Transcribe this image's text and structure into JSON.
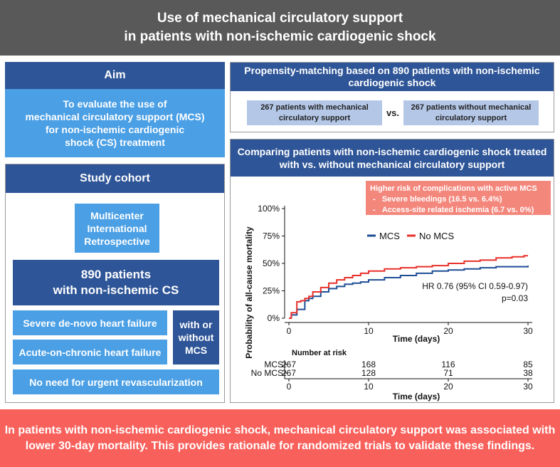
{
  "title": {
    "line1": "Use of mechanical circulatory support",
    "line2": "in patients with non-ischemic cardiogenic shock"
  },
  "aim": {
    "heading": "Aim",
    "lines": [
      "To evaluate the use of",
      "mechanical circulatory support (MCS)",
      "for non-ischemic cardiogenic",
      "shock (CS) treatment"
    ]
  },
  "cohort": {
    "heading": "Study cohort",
    "design_lines": [
      "Multicenter",
      "International",
      "Retrospective"
    ],
    "patients_line1": "890 patients",
    "patients_line2": "with non-ischemic CS",
    "criteria": [
      "Severe de-novo heart failure",
      "Acute-on-chronic heart failure"
    ],
    "with_or_without": [
      "with or",
      "without",
      "MCS"
    ],
    "no_revasc": "No need for urgent revascularization"
  },
  "propensity": {
    "heading_line1": "Propensity-matching based on 890 patients with non-ischemic",
    "heading_line2": "cardiogenic shock",
    "group_mcs": [
      "267 patients with mechanical",
      "circulatory support"
    ],
    "vs_label": "vs.",
    "group_no_mcs": [
      "267 patients without mechanical",
      "circulatory support"
    ]
  },
  "comparison": {
    "heading_line1": "Comparing patients with non-ischemic cardiogenic shock treated",
    "heading_line2": "with vs. without mechanical circulatory support",
    "complications_title": "Higher risk of complications with active MCS",
    "complications": [
      "Severe bleedings (16.5 vs. 6.4%)",
      "Access-site related ischemia (6.7 vs. 0%)"
    ],
    "bullet": "-"
  },
  "conclusion": {
    "line1": "In patients with non-ischemic cardiogenic shock, mechanical circulatory support was associated with",
    "line2": "lower 30-day mortality. This provides rationale for randomized trials to validate these findings."
  },
  "colors": {
    "mcs": "#1f4e96",
    "no_mcs": "#e8302a"
  },
  "chart_data": {
    "type": "line",
    "title": "",
    "xlabel": "Time (days)",
    "ylabel": "Probability of all-cause mortality",
    "xlim": [
      0,
      30
    ],
    "ylim": [
      0,
      100
    ],
    "x_ticks": [
      0,
      10,
      20,
      30
    ],
    "y_ticks": [
      "0%",
      "25%",
      "50%",
      "75%",
      "100%"
    ],
    "y_tick_values": [
      0,
      25,
      50,
      75,
      100
    ],
    "grid": false,
    "legend_position": "top-center",
    "series": [
      {
        "name": "MCS",
        "color": "#1f4e96",
        "x": [
          0,
          0.3,
          1,
          1.5,
          2,
          2.5,
          3,
          4,
          5,
          6,
          7,
          8,
          9,
          10,
          12,
          14,
          16,
          18,
          20,
          22,
          24,
          26,
          28,
          30
        ],
        "y": [
          0,
          3,
          8,
          8,
          16,
          18,
          20,
          24,
          27,
          29,
          31,
          32,
          33,
          35,
          37,
          39,
          41,
          43,
          44,
          45,
          46,
          47,
          47,
          48
        ]
      },
      {
        "name": "No MCS",
        "color": "#e8302a",
        "x": [
          0,
          0.3,
          1,
          1.5,
          2,
          2.5,
          3,
          4,
          5,
          6,
          7,
          8,
          9,
          10,
          12,
          14,
          16,
          18,
          20,
          22,
          24,
          26,
          28,
          29.5,
          30
        ],
        "y": [
          0,
          5,
          15,
          16,
          18,
          20,
          24,
          28,
          32,
          35,
          37,
          39,
          41,
          43,
          45,
          46,
          47,
          48,
          50,
          52,
          53,
          55,
          56,
          57,
          57
        ]
      }
    ],
    "annotation_hr": "HR 0.76 (95% CI 0.59-0.97)",
    "annotation_p": "p=0.03",
    "risk_table": {
      "title": "Number at risk",
      "times": [
        0,
        10,
        20,
        30
      ],
      "rows": [
        {
          "label": "MCS",
          "values": [
            267,
            168,
            116,
            85
          ]
        },
        {
          "label": "No MCS",
          "values": [
            267,
            128,
            71,
            38
          ]
        }
      ],
      "xlabel": "Time (days)"
    }
  }
}
